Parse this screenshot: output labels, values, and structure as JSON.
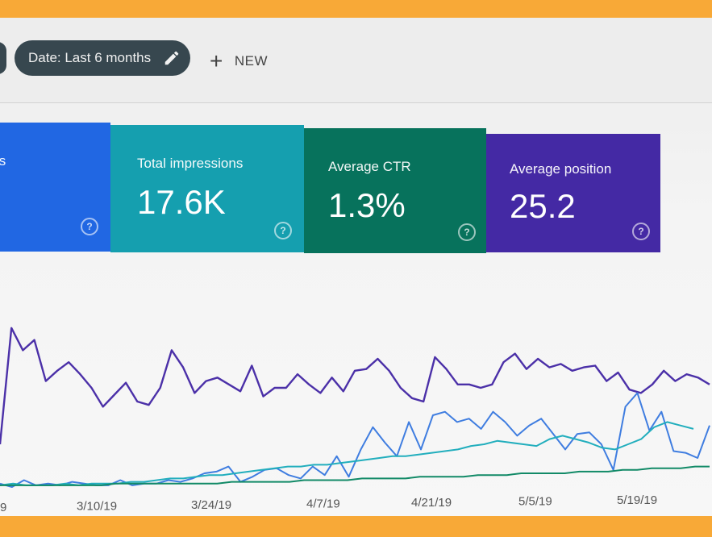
{
  "toolbar": {
    "date_filter_label": "Date: Last 6 months",
    "new_label": "NEW"
  },
  "cards": {
    "clicks": {
      "title_fragment": "ts"
    },
    "impressions": {
      "title": "Total impressions",
      "value": "17.6K"
    },
    "ctr": {
      "title": "Average CTR",
      "value": "1.3%"
    },
    "position": {
      "title": "Average position",
      "value": "25.2"
    },
    "help_glyph": "?"
  },
  "colors": {
    "clicks": "#2167e3",
    "impressions": "#159faf",
    "ctr": "#07725c",
    "position": "#4429a4"
  },
  "chart_data": {
    "type": "line",
    "x_tick_labels": [
      "9",
      "3/10/19",
      "3/24/19",
      "4/7/19",
      "4/21/19",
      "5/5/19",
      "5/19/19"
    ],
    "grid": false,
    "series": [
      {
        "key": "position",
        "color": "#4b30a8",
        "values": [
          25,
          93,
          80,
          86,
          62,
          68,
          73,
          66,
          58,
          47,
          54,
          61,
          50,
          48,
          58,
          80,
          70,
          55,
          62,
          64,
          60,
          56,
          71,
          53,
          58,
          58,
          66,
          60,
          55,
          64,
          56,
          68,
          69,
          75,
          68,
          58,
          52,
          50,
          76,
          69,
          60,
          60,
          58,
          60,
          73,
          78,
          69,
          75,
          70,
          72,
          68,
          70,
          71,
          62,
          67,
          57,
          55,
          60,
          68,
          62,
          66,
          64,
          60
        ]
      },
      {
        "key": "clicks",
        "color": "#3f7de0",
        "values": [
          2,
          0,
          4,
          1,
          2,
          1,
          3,
          2,
          1,
          1,
          4,
          1,
          2,
          2,
          4,
          3,
          5,
          8,
          9,
          12,
          3,
          6,
          10,
          11,
          7,
          5,
          12,
          7,
          18,
          6,
          22,
          35,
          26,
          18,
          38,
          22,
          42,
          44,
          38,
          40,
          34,
          44,
          38,
          30,
          36,
          40,
          31,
          22,
          31,
          32,
          25,
          10,
          47,
          55,
          33,
          44,
          21,
          20,
          17,
          36
        ]
      },
      {
        "key": "impressions",
        "color": "#22aebd",
        "values": [
          1,
          2,
          1,
          1,
          1,
          2,
          1,
          2,
          2,
          2,
          3,
          3,
          4,
          5,
          5,
          6,
          7,
          7,
          8,
          9,
          10,
          11,
          12,
          12,
          13,
          13,
          14,
          15,
          16,
          17,
          18,
          18,
          19,
          20,
          21,
          22,
          24,
          25,
          27,
          26,
          25,
          24,
          28,
          30,
          28,
          26,
          23,
          22,
          25,
          28,
          35,
          38,
          36,
          34
        ]
      },
      {
        "key": "ctr",
        "color": "#128a67",
        "values": [
          1,
          1,
          1,
          1,
          1,
          1,
          1,
          1,
          2,
          2,
          2,
          2,
          2,
          2,
          2,
          2,
          3,
          3,
          3,
          3,
          3,
          4,
          4,
          4,
          4,
          5,
          5,
          5,
          5,
          6,
          6,
          6,
          6,
          7,
          7,
          7,
          8,
          8,
          8,
          8,
          9,
          9,
          9,
          10,
          10,
          11,
          11,
          11,
          12,
          12
        ]
      }
    ]
  }
}
